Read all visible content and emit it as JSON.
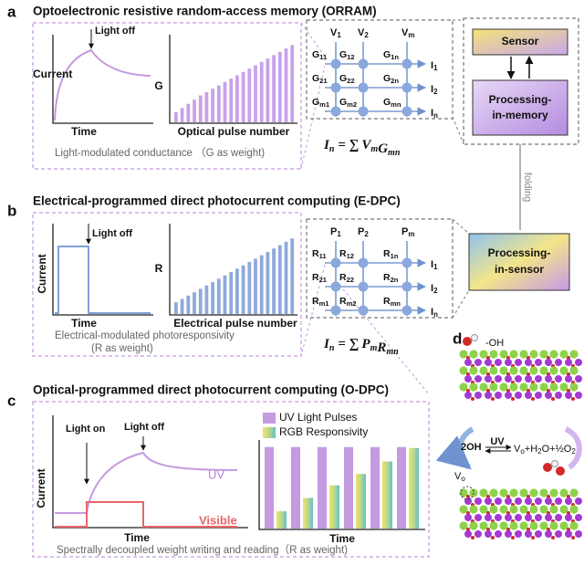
{
  "panel_a": {
    "label": "a",
    "title": "Optoelectronic resistive random-access memory (ORRAM)",
    "curve_chart": {
      "annotation": "Light off",
      "y_label": "Current",
      "x_label": "Time"
    },
    "bar_chart": {
      "y_label": "G",
      "x_label": "Optical pulse number",
      "values": [
        12,
        17,
        22,
        27,
        32,
        36,
        40,
        44,
        48,
        52,
        56,
        60,
        64,
        68,
        72,
        76,
        80,
        84,
        88,
        92
      ]
    },
    "caption": "Light-modulated conductance （G as weight)",
    "crossbar": {
      "inputs": [
        {
          "main": "V",
          "sub": "1"
        },
        {
          "main": "V",
          "sub": "2"
        },
        {
          "main": "V",
          "sub": "m"
        }
      ],
      "outputs": [
        {
          "main": "I",
          "sub": "1"
        },
        {
          "main": "I",
          "sub": "2"
        },
        {
          "main": "I",
          "sub": "n"
        }
      ],
      "nodes": [
        [
          {
            "main": "G",
            "sub": "11"
          },
          {
            "main": "G",
            "sub": "12"
          },
          {
            "main": "G",
            "sub": "1n"
          }
        ],
        [
          {
            "main": "G",
            "sub": "21"
          },
          {
            "main": "G",
            "sub": "22"
          },
          {
            "main": "G",
            "sub": "2n"
          }
        ],
        [
          {
            "main": "G",
            "sub": "m1"
          },
          {
            "main": "G",
            "sub": "m2"
          },
          {
            "main": "G",
            "sub": "mn"
          }
        ]
      ]
    },
    "equation": {
      "lhs": {
        "main": "I",
        "sub": "n"
      },
      "operator": "= ∑",
      "terms": [
        {
          "main": "V",
          "sub": "m"
        },
        {
          "main": "G",
          "sub": "mn"
        }
      ]
    }
  },
  "panel_b": {
    "label": "b",
    "title": "Electrical-programmed direct photocurrent computing (E-DPC)",
    "step_chart": {
      "annotation": "Light off",
      "y_label": "Current",
      "x_label": "Time"
    },
    "bar_chart": {
      "y_label": "R",
      "x_label": "Electrical pulse number",
      "values": [
        14,
        18,
        22,
        26,
        30,
        34,
        38,
        42,
        46,
        50,
        54,
        58,
        62,
        66,
        70,
        74,
        78,
        82,
        86,
        90
      ]
    },
    "caption": [
      "Electrical-modulated photoresponsivity",
      "(R as weight)"
    ],
    "crossbar": {
      "inputs": [
        {
          "main": "P",
          "sub": "1"
        },
        {
          "main": "P",
          "sub": "2"
        },
        {
          "main": "P",
          "sub": "m"
        }
      ],
      "outputs": [
        {
          "main": "I",
          "sub": "1"
        },
        {
          "main": "I",
          "sub": "2"
        },
        {
          "main": "I",
          "sub": "n"
        }
      ],
      "nodes": [
        [
          {
            "main": "R",
            "sub": "11"
          },
          {
            "main": "R",
            "sub": "12"
          },
          {
            "main": "R",
            "sub": "1n"
          }
        ],
        [
          {
            "main": "R",
            "sub": "21"
          },
          {
            "main": "R",
            "sub": "22"
          },
          {
            "main": "R",
            "sub": "2n"
          }
        ],
        [
          {
            "main": "R",
            "sub": "m1"
          },
          {
            "main": "R",
            "sub": "m2"
          },
          {
            "main": "R",
            "sub": "mn"
          }
        ]
      ]
    },
    "equation": {
      "lhs": {
        "main": "I",
        "sub": "n"
      },
      "operator": "= ∑",
      "terms": [
        {
          "main": "P",
          "sub": "m"
        },
        {
          "main": "R",
          "sub": "mn"
        }
      ]
    }
  },
  "panel_c": {
    "label": "c",
    "title": "Optical-programmed direct photocurrent computing (O-DPC)",
    "curve_chart": {
      "annotation_on": "Light on",
      "annotation_off": "Light off",
      "y_label": "Current",
      "x_label": "Time",
      "series": [
        "UV",
        "Visible"
      ]
    },
    "bar_chart": {
      "x_label": "Time",
      "series": [
        {
          "name": "UV Light Pulses",
          "values": [
            85,
            85,
            85,
            85,
            85,
            85
          ]
        },
        {
          "name": "RGB Responsivity",
          "values": [
            18,
            32,
            45,
            57,
            70,
            84
          ]
        }
      ]
    },
    "caption": "Spectrally decoupled weight writing and reading（R as weight)"
  },
  "panel_d": {
    "label": "d",
    "hydroxyl": "-OH",
    "reactant": "2OH",
    "arrow_label": "UV",
    "products": [
      "V",
      "o",
      "+H",
      "2",
      "O+",
      "½",
      "O",
      "2"
    ],
    "vacancy": {
      "main": "V",
      "sub": "o"
    }
  },
  "system": {
    "sensor": "Sensor",
    "processing_in_memory": [
      "Processing-",
      "in-memory"
    ],
    "fold": "folding",
    "processing_in_sensor": [
      "Processing-",
      "in-sensor"
    ]
  }
}
